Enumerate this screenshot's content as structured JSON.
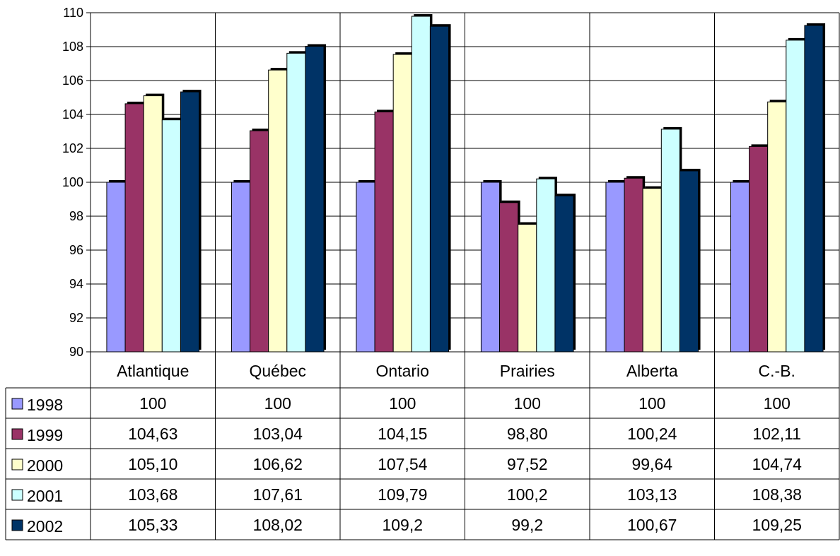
{
  "chart_data": {
    "type": "bar",
    "categories": [
      "Atlantique",
      "Québec",
      "Ontario",
      "Prairies",
      "Alberta",
      "C.-B."
    ],
    "ylim": [
      90,
      110
    ],
    "yticks": [
      "90",
      "92",
      "94",
      "96",
      "98",
      "100",
      "102",
      "104",
      "106",
      "108",
      "110"
    ],
    "grid": true,
    "legend_placement": "data-table-left",
    "series": [
      {
        "name": "1998",
        "color": "#9999ff",
        "values": [
          100,
          100,
          100,
          100,
          100,
          100
        ],
        "labels": [
          "100",
          "100",
          "100",
          "100",
          "100",
          "100"
        ]
      },
      {
        "name": "1999",
        "color": "#993366",
        "values": [
          104.63,
          103.04,
          104.15,
          98.8,
          100.24,
          102.11
        ],
        "labels": [
          "104,63",
          "103,04",
          "104,15",
          "98,80",
          "100,24",
          "102,11"
        ]
      },
      {
        "name": "2000",
        "color": "#ffffcc",
        "values": [
          105.1,
          106.62,
          107.54,
          97.52,
          99.64,
          104.74
        ],
        "labels": [
          "105,10",
          "106,62",
          "107,54",
          "97,52",
          "99,64",
          "104,74"
        ]
      },
      {
        "name": "2001",
        "color": "#ccffff",
        "values": [
          103.68,
          107.61,
          109.79,
          100.2,
          103.13,
          108.38
        ],
        "labels": [
          "103,68",
          "107,61",
          "109,79",
          "100,2",
          "103,13",
          "108,38"
        ]
      },
      {
        "name": "2002",
        "color": "#003366",
        "values": [
          105.33,
          108.02,
          109.2,
          99.2,
          100.67,
          109.25
        ],
        "labels": [
          "105,33",
          "108,02",
          "109,2",
          "99,2",
          "100,67",
          "109,25"
        ]
      }
    ]
  }
}
